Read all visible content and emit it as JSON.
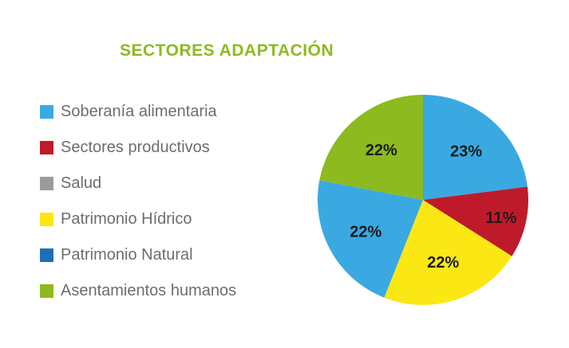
{
  "chart_data": {
    "type": "pie",
    "title": "SECTORES ADAPTACIÓN",
    "legend": [
      {
        "label": "Soberanía alimentaria",
        "color": "#3aa9e1"
      },
      {
        "label": "Sectores productivos",
        "color": "#be1a2a"
      },
      {
        "label": "Salud",
        "color": "#9b9b9b"
      },
      {
        "label": "Patrimonio Hídrico",
        "color": "#fbe714"
      },
      {
        "label": "Patrimonio Natural",
        "color": "#1f6fb5"
      },
      {
        "label": "Asentamientos humanos",
        "color": "#8dba1e"
      }
    ],
    "slices": [
      {
        "value": 23,
        "label": "23%",
        "color": "#3aa9e1"
      },
      {
        "value": 11,
        "label": "11%",
        "color": "#be1a2a"
      },
      {
        "value": 22,
        "label": "22%",
        "color": "#fbe714"
      },
      {
        "value": 22,
        "label": "22%",
        "color": "#3aa9e1"
      },
      {
        "value": 22,
        "label": "22%",
        "color": "#8dba1e"
      }
    ],
    "legend_placement": "left"
  }
}
